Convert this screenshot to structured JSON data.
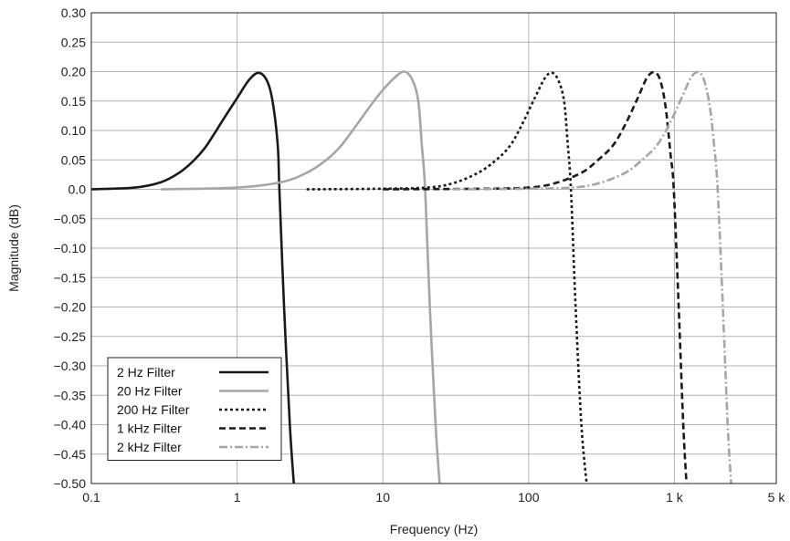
{
  "chart_data": {
    "type": "line",
    "title": "",
    "xlabel": "Frequency (Hz)",
    "ylabel": "Magnitude (dB)",
    "x_scale": "log",
    "xlim": [
      0.1,
      5000
    ],
    "ylim": [
      -0.5,
      0.3
    ],
    "x_ticks": [
      {
        "value": 0.1,
        "label": "0.1"
      },
      {
        "value": 1,
        "label": "1"
      },
      {
        "value": 10,
        "label": "10"
      },
      {
        "value": 100,
        "label": "100"
      },
      {
        "value": 1000,
        "label": "1 k"
      },
      {
        "value": 5000,
        "label": "5 k"
      }
    ],
    "y_ticks": [
      {
        "value": 0.3,
        "label": "0.30"
      },
      {
        "value": 0.25,
        "label": "0.25"
      },
      {
        "value": 0.2,
        "label": "0.20"
      },
      {
        "value": 0.15,
        "label": "0.15"
      },
      {
        "value": 0.1,
        "label": "0.10"
      },
      {
        "value": 0.05,
        "label": "0.05"
      },
      {
        "value": 0.0,
        "label": "0.0"
      },
      {
        "value": -0.05,
        "label": "−0.05"
      },
      {
        "value": -0.1,
        "label": "−0.10"
      },
      {
        "value": -0.15,
        "label": "−0.15"
      },
      {
        "value": -0.2,
        "label": "−0.20"
      },
      {
        "value": -0.25,
        "label": "−0.25"
      },
      {
        "value": -0.3,
        "label": "−0.30"
      },
      {
        "value": -0.35,
        "label": "−0.35"
      },
      {
        "value": -0.4,
        "label": "−0.40"
      },
      {
        "value": -0.45,
        "label": "−0.45"
      },
      {
        "value": -0.5,
        "label": "−0.50"
      }
    ],
    "grid": true,
    "legend_position": "bottom-left",
    "series": [
      {
        "name": "2 Hz Filter",
        "color": "#1a1a1a",
        "dash": "solid",
        "points": [
          [
            0.1,
            0.0
          ],
          [
            0.2,
            0.003
          ],
          [
            0.3,
            0.012
          ],
          [
            0.4,
            0.028
          ],
          [
            0.5,
            0.048
          ],
          [
            0.6,
            0.07
          ],
          [
            0.7,
            0.095
          ],
          [
            0.8,
            0.118
          ],
          [
            1.0,
            0.155
          ],
          [
            1.2,
            0.185
          ],
          [
            1.4,
            0.198
          ],
          [
            1.6,
            0.185
          ],
          [
            1.75,
            0.15
          ],
          [
            1.9,
            0.075
          ],
          [
            1.95,
            0.0
          ],
          [
            2.1,
            -0.2
          ],
          [
            2.3,
            -0.4
          ],
          [
            2.45,
            -0.5
          ]
        ]
      },
      {
        "name": "20 Hz Filter",
        "color": "#a6a6a6",
        "dash": "solid",
        "points": [
          [
            0.3,
            0.0
          ],
          [
            1.0,
            0.003
          ],
          [
            2.0,
            0.012
          ],
          [
            3.0,
            0.028
          ],
          [
            4.0,
            0.048
          ],
          [
            5.0,
            0.07
          ],
          [
            6.0,
            0.095
          ],
          [
            7.0,
            0.118
          ],
          [
            9.0,
            0.155
          ],
          [
            11.5,
            0.185
          ],
          [
            14.0,
            0.2
          ],
          [
            16.0,
            0.185
          ],
          [
            17.5,
            0.15
          ],
          [
            18.5,
            0.075
          ],
          [
            19.5,
            0.0
          ],
          [
            21.0,
            -0.2
          ],
          [
            23.0,
            -0.4
          ],
          [
            24.5,
            -0.5
          ]
        ]
      },
      {
        "name": "200 Hz Filter",
        "color": "#1a1a1a",
        "dash": "dot",
        "points": [
          [
            3.0,
            0.0
          ],
          [
            10.0,
            0.001
          ],
          [
            20.0,
            0.003
          ],
          [
            30.0,
            0.01
          ],
          [
            45.0,
            0.028
          ],
          [
            60.0,
            0.05
          ],
          [
            75.0,
            0.075
          ],
          [
            90.0,
            0.11
          ],
          [
            110.0,
            0.155
          ],
          [
            130.0,
            0.19
          ],
          [
            145.0,
            0.198
          ],
          [
            160.0,
            0.185
          ],
          [
            175.0,
            0.15
          ],
          [
            185.0,
            0.08
          ],
          [
            195.0,
            0.0
          ],
          [
            210.0,
            -0.2
          ],
          [
            230.0,
            -0.4
          ],
          [
            250.0,
            -0.5
          ]
        ]
      },
      {
        "name": "1 kHz Filter",
        "color": "#1a1a1a",
        "dash": "dash",
        "points": [
          [
            10.0,
            0.0
          ],
          [
            50.0,
            0.001
          ],
          [
            100.0,
            0.003
          ],
          [
            150.0,
            0.01
          ],
          [
            230.0,
            0.028
          ],
          [
            300.0,
            0.05
          ],
          [
            380.0,
            0.075
          ],
          [
            460.0,
            0.11
          ],
          [
            560.0,
            0.155
          ],
          [
            650.0,
            0.19
          ],
          [
            730.0,
            0.199
          ],
          [
            800.0,
            0.185
          ],
          [
            870.0,
            0.14
          ],
          [
            940.0,
            0.06
          ],
          [
            990.0,
            0.0
          ],
          [
            1070.0,
            -0.2
          ],
          [
            1150.0,
            -0.4
          ],
          [
            1210.0,
            -0.5
          ]
        ]
      },
      {
        "name": "2 kHz Filter",
        "color": "#a6a6a6",
        "dash": "dashdot",
        "points": [
          [
            30.0,
            0.0
          ],
          [
            100.0,
            0.001
          ],
          [
            200.0,
            0.003
          ],
          [
            300.0,
            0.01
          ],
          [
            460.0,
            0.028
          ],
          [
            600.0,
            0.05
          ],
          [
            760.0,
            0.075
          ],
          [
            920.0,
            0.11
          ],
          [
            1120.0,
            0.155
          ],
          [
            1300.0,
            0.19
          ],
          [
            1460.0,
            0.199
          ],
          [
            1600.0,
            0.185
          ],
          [
            1750.0,
            0.14
          ],
          [
            1880.0,
            0.07
          ],
          [
            1980.0,
            0.0
          ],
          [
            2150.0,
            -0.2
          ],
          [
            2320.0,
            -0.4
          ],
          [
            2450.0,
            -0.5
          ]
        ]
      }
    ]
  }
}
